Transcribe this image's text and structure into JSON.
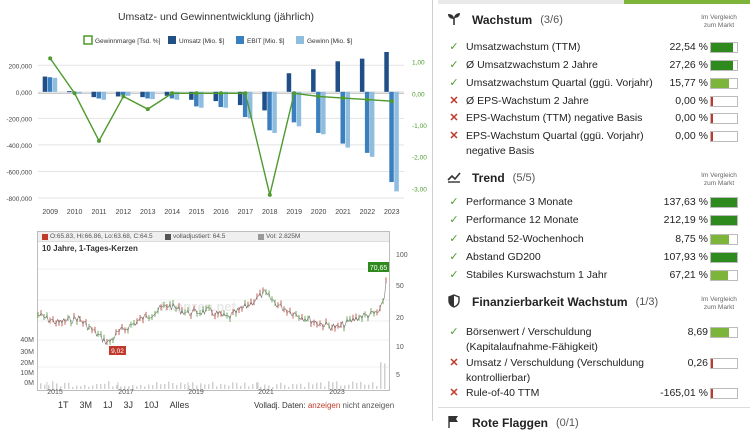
{
  "left": {
    "chart_title": "Umsatz- und Gewinnentwicklung (jährlich)",
    "legend": [
      {
        "label": "Gewinnmarge [Tsd. %]",
        "color": "#4e9a2e",
        "kind": "box"
      },
      {
        "label": "Umsatz [Mio. $]",
        "color": "#1f4f86",
        "kind": "fill"
      },
      {
        "label": "EBIT [Mio. $]",
        "color": "#3b7fbf",
        "kind": "fill"
      },
      {
        "label": "Gewinn [Mio. $]",
        "color": "#8ebde0",
        "kind": "fill"
      }
    ],
    "stock": {
      "info_items": [
        "O:65.83, Hi:66.86, Lo:63.68, C:64.5",
        "volladjustiert: 64.5",
        "Vol: 2.825M"
      ],
      "subtitle": "10 Jahre, 1-Tages-Kerzen",
      "last_label": "70,65",
      "low_label": "9,02",
      "y_ticks": [
        "100",
        "50",
        "20",
        "10",
        "5"
      ],
      "vol_ticks": [
        "40M",
        "30M",
        "20M",
        "10M",
        "0M"
      ],
      "x_years": [
        "2015",
        "2017",
        "2019",
        "2021",
        "2023"
      ],
      "watermark": "finanzen.net",
      "range_buttons": [
        "1T",
        "3M",
        "1J",
        "3J",
        "10J",
        "Alles"
      ],
      "volladj_prefix": "Volladj. Daten:",
      "volladj_on": "anzeigen",
      "volladj_off": "nicht anzeigen"
    }
  },
  "chart_data": {
    "type": "bar",
    "title": "Umsatz- und Gewinnentwicklung (jährlich)",
    "categories": [
      "2009",
      "2010",
      "2011",
      "2012",
      "2013",
      "2014",
      "2015",
      "2016",
      "2017",
      "2018",
      "2019",
      "2020",
      "2021",
      "2022",
      "2023"
    ],
    "y_left_ticks": [
      "200,000",
      "0,000",
      "-200,000",
      "-400,000",
      "-600,000",
      "-800,000"
    ],
    "y_right_ticks": [
      "1,00",
      "0,00",
      "-1,00",
      "-2,00",
      "-3,00"
    ],
    "ylim_left": [
      -800,
      300
    ],
    "ylim_right": [
      -3.3,
      1.3
    ],
    "series": [
      {
        "name": "Umsatz [Mio. $]",
        "axis": "left",
        "values": [
          115,
          5,
          -40,
          -35,
          -40,
          -30,
          -60,
          -70,
          -100,
          -140,
          140,
          170,
          230,
          250,
          300
        ]
      },
      {
        "name": "EBIT [Mio. $]",
        "axis": "left",
        "values": [
          110,
          -5,
          -50,
          -25,
          -50,
          -50,
          -110,
          -115,
          -190,
          -290,
          -230,
          -310,
          -390,
          -460,
          -680
        ]
      },
      {
        "name": "Gewinn [Mio. $]",
        "axis": "left",
        "values": [
          105,
          -15,
          -60,
          -30,
          -55,
          -60,
          -120,
          -120,
          -200,
          -310,
          -260,
          -320,
          -420,
          -490,
          -750
        ]
      },
      {
        "name": "Gewinnmarge [Tsd. %]",
        "axis": "right",
        "type": "line",
        "values": [
          1.1,
          0.0,
          -1.5,
          -0.1,
          -0.5,
          0.0,
          0.0,
          0.0,
          0.0,
          -3.2,
          0.0,
          -0.1,
          -0.15,
          -0.2,
          -0.25
        ]
      }
    ]
  },
  "right": {
    "compare_text": [
      "Im Vergleich",
      "zum Markt"
    ],
    "sections": [
      {
        "title": "Wachstum",
        "count": "(3/6)",
        "icon": "sprout-icon",
        "rows": [
          {
            "label": "Umsatzwachstum (TTM)",
            "value": "22,54 %",
            "ok": true,
            "fill": 0.85,
            "color": "#2f8a1e"
          },
          {
            "label": "Ø Umsatzwachstum 2 Jahre",
            "value": "27,26 %",
            "ok": true,
            "fill": 0.85,
            "color": "#2f8a1e"
          },
          {
            "label": "Umsatzwachstum Quartal (ggü. Vorjahr)",
            "value": "15,77 %",
            "ok": true,
            "fill": 0.7,
            "color": "#7db43a"
          },
          {
            "label": "Ø EPS-Wachstum 2 Jahre",
            "value": "0,00 %",
            "ok": false,
            "fill": 0.08,
            "color": "#c0392b"
          },
          {
            "label": "EPS-Wachstum (TTM) negative Basis",
            "value": "0,00 %",
            "ok": false,
            "fill": 0.08,
            "color": "#c0392b"
          },
          {
            "label": "EPS-Wachstum Quartal (ggü. Vorjahr) negative Basis",
            "value": "0,00 %",
            "ok": false,
            "fill": 0.08,
            "color": "#c0392b"
          }
        ]
      },
      {
        "title": "Trend",
        "count": "(5/5)",
        "icon": "trend-line-icon",
        "rows": [
          {
            "label": "Performance 3 Monate",
            "value": "137,63 %",
            "ok": true,
            "fill": 1.0,
            "color": "#2f8a1e"
          },
          {
            "label": "Performance 12 Monate",
            "value": "212,19 %",
            "ok": true,
            "fill": 1.0,
            "color": "#2f8a1e"
          },
          {
            "label": "Abstand 52-Wochenhoch",
            "value": "8,75 %",
            "ok": true,
            "fill": 0.7,
            "color": "#7db43a"
          },
          {
            "label": "Abstand GD200",
            "value": "107,93 %",
            "ok": true,
            "fill": 1.0,
            "color": "#2f8a1e"
          },
          {
            "label": "Stabiles Kurswachstum 1 Jahr",
            "value": "67,21 %",
            "ok": true,
            "fill": 0.65,
            "color": "#7db43a"
          }
        ]
      },
      {
        "title": "Finanzierbarkeit Wachstum",
        "count": "(1/3)",
        "icon": "shield-icon",
        "rows": [
          {
            "label": "Börsenwert / Verschuldung (Kapitalaufnahme-Fähigkeit)",
            "value": "8,69",
            "ok": true,
            "fill": 0.7,
            "color": "#7db43a"
          },
          {
            "label": "Umsatz / Verschuldung (Verschuldung kontrollierbar)",
            "value": "0,26",
            "ok": false,
            "fill": 0.08,
            "color": "#c0392b"
          },
          {
            "label": "Rule-of-40 TTM",
            "value": "-165,01 %",
            "ok": false,
            "fill": 0.08,
            "color": "#c0392b"
          }
        ]
      },
      {
        "title": "Rote Flaggen",
        "count": "(0/1)",
        "icon": "flag-icon",
        "rows": []
      }
    ]
  }
}
